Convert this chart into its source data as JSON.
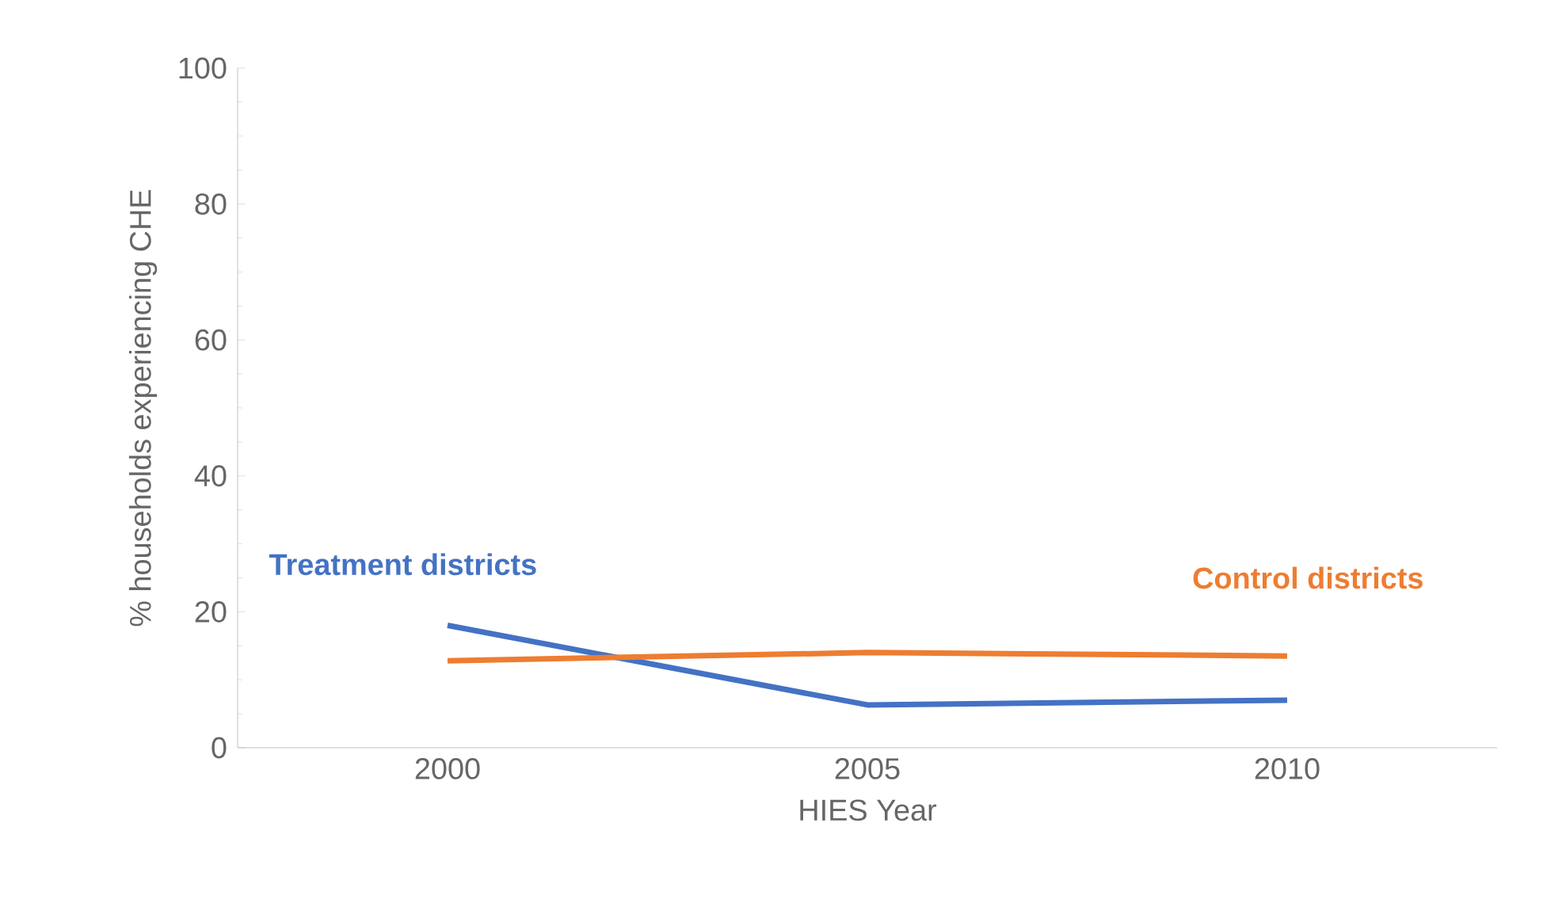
{
  "chart_data": {
    "type": "line",
    "xlabel": "HIES Year",
    "ylabel": "% households experiencing CHE",
    "categories": [
      "2000",
      "2005",
      "2010"
    ],
    "series": [
      {
        "name": "Treatment districts",
        "color": "#4472c4",
        "values": [
          18,
          6.3,
          7
        ]
      },
      {
        "name": "Control districts",
        "color": "#ed7d31",
        "values": [
          12.8,
          14,
          13.5
        ]
      }
    ],
    "ylim": [
      0,
      100
    ],
    "yticks": [
      0,
      20,
      40,
      60,
      80,
      100
    ],
    "grid": false,
    "legend": false,
    "marker": "none",
    "line_style": "solid"
  }
}
